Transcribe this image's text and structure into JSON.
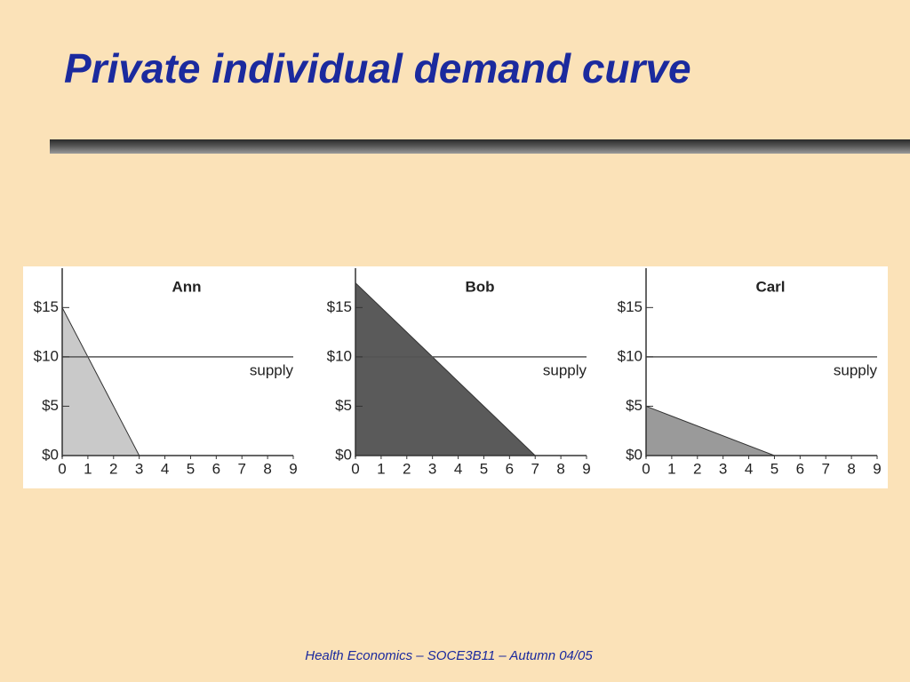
{
  "title": "Private individual demand curve",
  "footer": "Health Economics – SOCE3B11 – Autumn 04/05",
  "chart_data": [
    {
      "type": "area",
      "title": "Ann",
      "xlim": [
        0,
        9
      ],
      "ylim": [
        0,
        18
      ],
      "xticks": [
        0,
        1,
        2,
        3,
        4,
        5,
        6,
        7,
        8,
        9
      ],
      "yticks": [
        {
          "value": 0,
          "label": "$0"
        },
        {
          "value": 5,
          "label": "$5"
        },
        {
          "value": 10,
          "label": "$10"
        },
        {
          "value": 15,
          "label": "$15"
        }
      ],
      "series": [
        {
          "name": "demand",
          "color": "#c9c9c9",
          "x": [
            0,
            3
          ],
          "values": [
            15,
            0
          ]
        },
        {
          "name": "supply",
          "color": "#555555",
          "x": [
            0,
            9
          ],
          "values": [
            10,
            10
          ]
        }
      ]
    },
    {
      "type": "area",
      "title": "Bob",
      "xlim": [
        0,
        9
      ],
      "ylim": [
        0,
        18
      ],
      "xticks": [
        0,
        1,
        2,
        3,
        4,
        5,
        6,
        7,
        8,
        9
      ],
      "yticks": [
        {
          "value": 0,
          "label": "$0"
        },
        {
          "value": 5,
          "label": "$5"
        },
        {
          "value": 10,
          "label": "$10"
        },
        {
          "value": 15,
          "label": "$15"
        }
      ],
      "series": [
        {
          "name": "demand",
          "color": "#5a5a5a",
          "x": [
            0,
            7
          ],
          "values": [
            17.5,
            0
          ]
        },
        {
          "name": "supply",
          "color": "#555555",
          "x": [
            0,
            9
          ],
          "values": [
            10,
            10
          ]
        }
      ]
    },
    {
      "type": "area",
      "title": "Carl",
      "xlim": [
        0,
        9
      ],
      "ylim": [
        0,
        18
      ],
      "xticks": [
        0,
        1,
        2,
        3,
        4,
        5,
        6,
        7,
        8,
        9
      ],
      "yticks": [
        {
          "value": 0,
          "label": "$0"
        },
        {
          "value": 5,
          "label": "$5"
        },
        {
          "value": 10,
          "label": "$10"
        },
        {
          "value": 15,
          "label": "$15"
        }
      ],
      "series": [
        {
          "name": "demand",
          "color": "#9a9a9a",
          "x": [
            0,
            5
          ],
          "values": [
            5,
            0
          ]
        },
        {
          "name": "supply",
          "color": "#555555",
          "x": [
            0,
            9
          ],
          "values": [
            10,
            10
          ]
        }
      ]
    }
  ]
}
